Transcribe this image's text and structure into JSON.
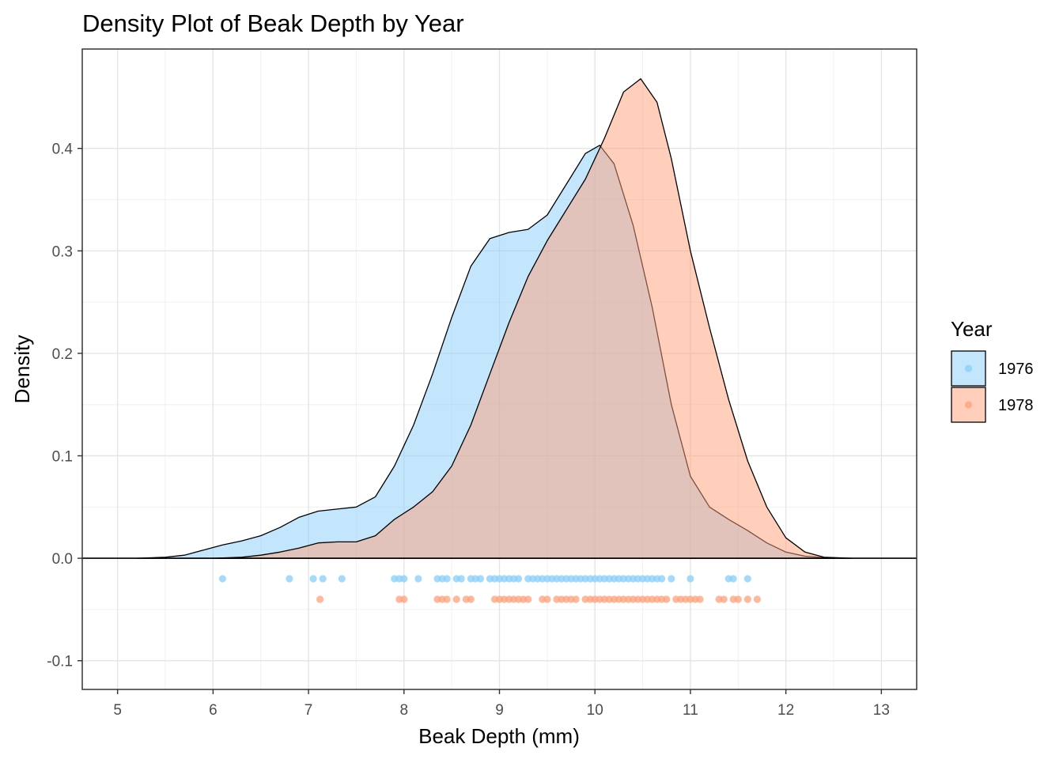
{
  "chart_data": {
    "type": "area",
    "title": "Density Plot of Beak Depth by Year",
    "xlabel": "Beak Depth (mm)",
    "ylabel": "Density",
    "xlim": [
      4.63,
      13.37
    ],
    "ylim": [
      -0.128,
      0.497
    ],
    "x_ticks": [
      5,
      6,
      7,
      8,
      9,
      10,
      11,
      12,
      13
    ],
    "y_ticks": [
      -0.1,
      0.0,
      0.1,
      0.2,
      0.3,
      0.4
    ],
    "y_tick_labels": [
      "-0.1",
      "0.0",
      "0.1",
      "0.2",
      "0.3",
      "0.4"
    ],
    "grid": true,
    "legend": {
      "title": "Year",
      "position": "right"
    },
    "series": [
      {
        "name": "1976",
        "fill": "#87cefa",
        "point_color": "#87cefa",
        "point_y": -0.02,
        "density": [
          [
            5.2,
            0.0
          ],
          [
            5.5,
            0.001
          ],
          [
            5.7,
            0.003
          ],
          [
            5.9,
            0.008
          ],
          [
            6.1,
            0.013
          ],
          [
            6.3,
            0.017
          ],
          [
            6.5,
            0.022
          ],
          [
            6.7,
            0.03
          ],
          [
            6.9,
            0.04
          ],
          [
            7.1,
            0.046
          ],
          [
            7.3,
            0.048
          ],
          [
            7.5,
            0.05
          ],
          [
            7.7,
            0.06
          ],
          [
            7.9,
            0.09
          ],
          [
            8.1,
            0.13
          ],
          [
            8.3,
            0.18
          ],
          [
            8.5,
            0.235
          ],
          [
            8.7,
            0.285
          ],
          [
            8.9,
            0.312
          ],
          [
            9.1,
            0.318
          ],
          [
            9.3,
            0.321
          ],
          [
            9.5,
            0.335
          ],
          [
            9.7,
            0.365
          ],
          [
            9.9,
            0.395
          ],
          [
            10.05,
            0.403
          ],
          [
            10.2,
            0.385
          ],
          [
            10.4,
            0.325
          ],
          [
            10.6,
            0.245
          ],
          [
            10.8,
            0.15
          ],
          [
            11.0,
            0.08
          ],
          [
            11.2,
            0.05
          ],
          [
            11.4,
            0.038
          ],
          [
            11.6,
            0.027
          ],
          [
            11.8,
            0.015
          ],
          [
            12.0,
            0.006
          ],
          [
            12.2,
            0.002
          ],
          [
            12.5,
            0.0
          ]
        ],
        "points": [
          6.1,
          6.8,
          7.05,
          7.15,
          7.35,
          7.9,
          7.95,
          8.0,
          8.15,
          8.35,
          8.4,
          8.45,
          8.55,
          8.6,
          8.7,
          8.75,
          8.8,
          8.9,
          8.95,
          9.0,
          9.05,
          9.1,
          9.15,
          9.2,
          9.3,
          9.35,
          9.4,
          9.45,
          9.5,
          9.55,
          9.6,
          9.65,
          9.7,
          9.75,
          9.8,
          9.85,
          9.9,
          9.95,
          10.0,
          10.05,
          10.1,
          10.15,
          10.2,
          10.25,
          10.3,
          10.35,
          10.4,
          10.45,
          10.5,
          10.55,
          10.6,
          10.65,
          10.7,
          10.8,
          11.0,
          11.4,
          11.45,
          11.6
        ]
      },
      {
        "name": "1978",
        "fill": "#ffa07a",
        "point_color": "#ffa07a",
        "point_y": -0.04,
        "density": [
          [
            6.0,
            0.0
          ],
          [
            6.3,
            0.001
          ],
          [
            6.5,
            0.003
          ],
          [
            6.7,
            0.006
          ],
          [
            6.9,
            0.01
          ],
          [
            7.1,
            0.015
          ],
          [
            7.3,
            0.016
          ],
          [
            7.5,
            0.016
          ],
          [
            7.7,
            0.022
          ],
          [
            7.9,
            0.038
          ],
          [
            8.1,
            0.05
          ],
          [
            8.3,
            0.065
          ],
          [
            8.5,
            0.09
          ],
          [
            8.7,
            0.13
          ],
          [
            8.9,
            0.18
          ],
          [
            9.1,
            0.23
          ],
          [
            9.3,
            0.275
          ],
          [
            9.5,
            0.31
          ],
          [
            9.7,
            0.34
          ],
          [
            9.9,
            0.37
          ],
          [
            10.1,
            0.41
          ],
          [
            10.3,
            0.455
          ],
          [
            10.48,
            0.468
          ],
          [
            10.65,
            0.445
          ],
          [
            10.8,
            0.39
          ],
          [
            11.0,
            0.3
          ],
          [
            11.2,
            0.225
          ],
          [
            11.4,
            0.155
          ],
          [
            11.6,
            0.095
          ],
          [
            11.8,
            0.05
          ],
          [
            12.0,
            0.02
          ],
          [
            12.2,
            0.006
          ],
          [
            12.4,
            0.001
          ],
          [
            12.7,
            0.0
          ]
        ],
        "points": [
          7.12,
          7.95,
          8.0,
          8.35,
          8.4,
          8.45,
          8.55,
          8.65,
          8.7,
          8.95,
          9.0,
          9.05,
          9.1,
          9.15,
          9.2,
          9.25,
          9.3,
          9.45,
          9.5,
          9.6,
          9.65,
          9.7,
          9.75,
          9.8,
          9.9,
          9.95,
          10.0,
          10.05,
          10.1,
          10.15,
          10.2,
          10.25,
          10.3,
          10.35,
          10.4,
          10.45,
          10.5,
          10.55,
          10.6,
          10.65,
          10.7,
          10.75,
          10.85,
          10.9,
          10.95,
          11.0,
          11.05,
          11.1,
          11.3,
          11.35,
          11.45,
          11.5,
          11.6,
          11.7
        ]
      }
    ]
  }
}
